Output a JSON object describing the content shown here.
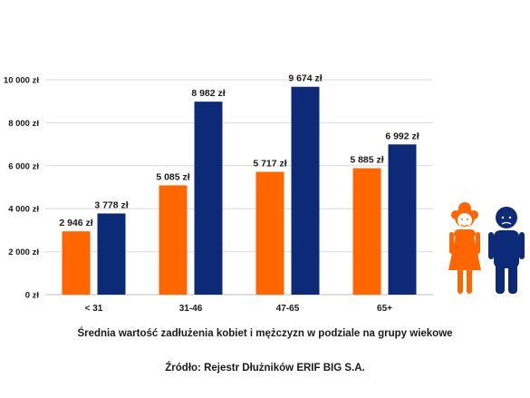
{
  "chart_data": {
    "type": "bar",
    "categories": [
      "< 31",
      "31-46",
      "47-65",
      "65+"
    ],
    "series": [
      {
        "key": "women",
        "values": [
          2946,
          5085,
          5717,
          5885
        ],
        "color": "#FF6600"
      },
      {
        "key": "men",
        "values": [
          3778,
          8982,
          9674,
          6992
        ],
        "color": "#0D2A78"
      }
    ],
    "ylim": [
      0,
      10000
    ],
    "yticks": [
      0,
      2000,
      4000,
      6000,
      8000,
      10000
    ],
    "ytick_labels": [
      "0 zł",
      "2 000 zł",
      "4 000 zł",
      "6 000 zł",
      "8 000 zł",
      "10 000 zł"
    ],
    "data_labels": [
      [
        "2 946 zł",
        "5 085 zł",
        "5 717 zł",
        "5 885 zł"
      ],
      [
        "3 778 zł",
        "8 982 zł",
        "9 674 zł",
        "6 992 zł"
      ]
    ],
    "grid": true,
    "title": "Średnia wartość zadłużenia kobiet i mężczyzn w podziale na grupy wiekowe",
    "source": "Źródło: Rejestr Dłużników ERIF BIG S.A."
  },
  "icons": {
    "woman": {
      "name": "woman-figure-icon",
      "color": "#FF6600"
    },
    "man": {
      "name": "man-figure-icon",
      "color": "#0D2A78"
    }
  }
}
